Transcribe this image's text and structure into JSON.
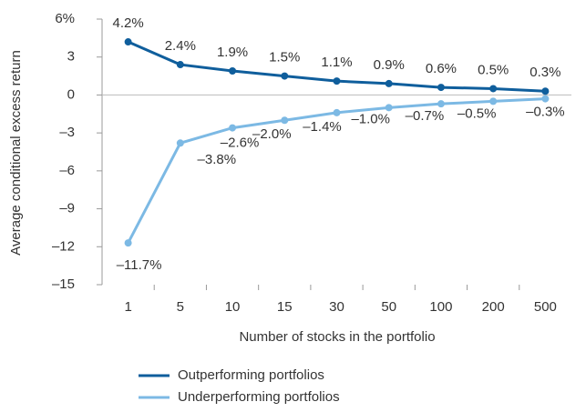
{
  "chart_data": {
    "type": "line",
    "y_label": "Average conditional excess return",
    "x_label": "Number of stocks in the portfolio",
    "categories": [
      1,
      5,
      10,
      15,
      30,
      50,
      100,
      200,
      500
    ],
    "series": [
      {
        "name": "Outperforming portfolios",
        "color": "#0f5e9c",
        "values": [
          4.2,
          2.4,
          1.9,
          1.5,
          1.1,
          0.9,
          0.6,
          0.5,
          0.3
        ],
        "value_labels": [
          "4.2%",
          "2.4%",
          "1.9%",
          "1.5%",
          "1.1%",
          "0.9%",
          "0.6%",
          "0.5%",
          "0.3%"
        ]
      },
      {
        "name": "Underperforming portfolios",
        "color": "#7cb9e4",
        "values": [
          -11.7,
          -3.8,
          -2.6,
          -2.0,
          -1.4,
          -1.0,
          -0.7,
          -0.5,
          -0.3
        ],
        "value_labels": [
          "–11.7%",
          "–3.8%",
          "–2.6%",
          "–2.0%",
          "–1.4%",
          "–1.0%",
          "–0.7%",
          "–0.5%",
          "–0.3%"
        ]
      }
    ],
    "ylim": [
      -15,
      6
    ],
    "yticks": [
      {
        "value": -15,
        "label": "–15"
      },
      {
        "value": -12,
        "label": "–12"
      },
      {
        "value": -9,
        "label": "–9"
      },
      {
        "value": -6,
        "label": "–6"
      },
      {
        "value": -3,
        "label": "–3"
      },
      0,
      3,
      {
        "value": 6,
        "label": "6%"
      }
    ],
    "legend": "bottom"
  }
}
